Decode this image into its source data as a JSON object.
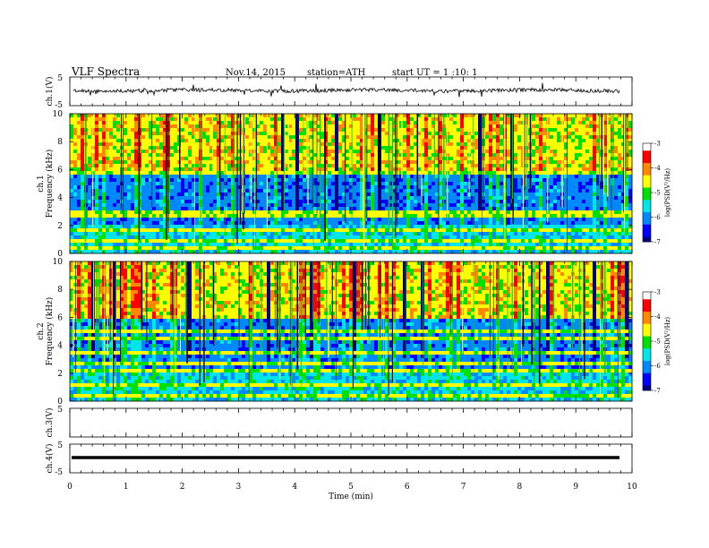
{
  "header": {
    "title": "VLF Spectra",
    "date": "Nov.14, 2015",
    "station": "station=ATH",
    "start": "start UT = 1 :10: 1"
  },
  "chart_data": [
    {
      "type": "line",
      "name": "ch1-waveform",
      "ylabel": "ch.1(V)",
      "ylim": [
        -5,
        5
      ],
      "yticks": [
        "5",
        "-5"
      ],
      "xlim": [
        0,
        10
      ]
    },
    {
      "type": "heatmap",
      "name": "ch1-spectrogram",
      "ylabel": "ch.1\nFrequency (kHz)",
      "ylabel_lines": [
        "ch.1",
        "Frequency (kHz)"
      ],
      "ylim": [
        0,
        10
      ],
      "yticks": [
        "0",
        "2",
        "4",
        "6",
        "8",
        "10"
      ],
      "xlim": [
        0,
        10
      ],
      "colorbar": {
        "label": "log(PSD(V²/Hz)",
        "range": [
          -7,
          -3
        ],
        "ticks": [
          "-3",
          "-4",
          "-5",
          "-6",
          "-7"
        ]
      }
    },
    {
      "type": "heatmap",
      "name": "ch2-spectrogram",
      "ylabel": "ch.2\nFrequency (kHz)",
      "ylabel_lines": [
        "ch.2",
        "Frequency (kHz)"
      ],
      "ylim": [
        0,
        10
      ],
      "yticks": [
        "0",
        "2",
        "4",
        "6",
        "8",
        "10"
      ],
      "xlim": [
        0,
        10
      ],
      "colorbar": {
        "label": "log(PSD(V²/Hz)",
        "range": [
          -7,
          -3
        ],
        "ticks": [
          "-3",
          "-4",
          "-5",
          "-6",
          "-7"
        ]
      }
    },
    {
      "type": "line",
      "name": "ch3-waveform",
      "ylabel": "ch.3(V)",
      "ylim": [
        -5,
        5
      ],
      "yticks": [
        "5"
      ],
      "xlim": [
        0,
        10
      ]
    },
    {
      "type": "line",
      "name": "ch4-waveform",
      "ylabel": "ch.4(V)",
      "ylim": [
        -5,
        5
      ],
      "yticks": [
        "5",
        "-5"
      ],
      "xlim": [
        0,
        10
      ]
    }
  ],
  "xaxis": {
    "label": "Time (min)",
    "ticks": [
      "0",
      "1",
      "2",
      "3",
      "4",
      "5",
      "6",
      "7",
      "8",
      "9",
      "10"
    ]
  },
  "colors": {
    "colormap": [
      "#000080",
      "#0000ff",
      "#0088ff",
      "#00e5e5",
      "#00e000",
      "#ffff00",
      "#ff8800",
      "#ff0000",
      "#ffffff"
    ]
  }
}
